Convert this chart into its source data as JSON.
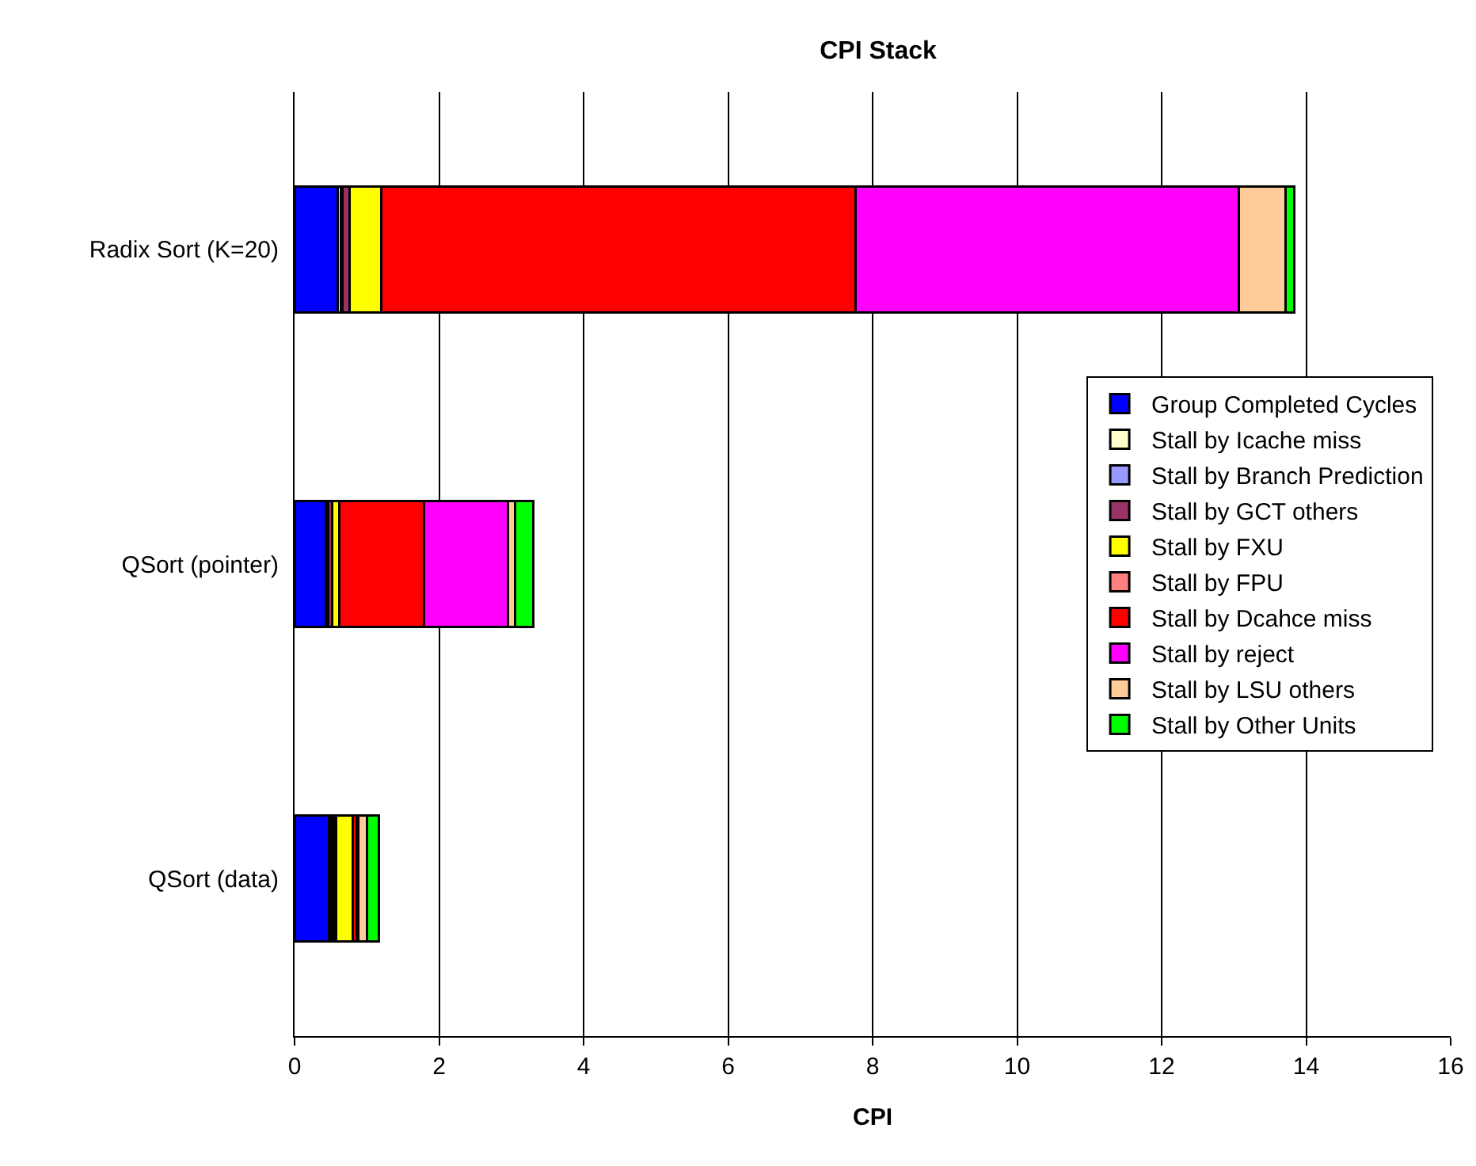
{
  "chart_data": {
    "type": "bar",
    "orientation": "horizontal",
    "stacked": true,
    "title": "CPI Stack",
    "xlabel": "CPI",
    "categories": [
      "Radix Sort (K=20)",
      "QSort (pointer)",
      "QSort (data)"
    ],
    "xlim": [
      0,
      16
    ],
    "xticks": [
      0,
      2,
      4,
      6,
      8,
      10,
      12,
      14,
      16
    ],
    "grid": "x",
    "legend": "right",
    "series": [
      {
        "name": "Group Completed Cycles",
        "color": "#0000ff",
        "values": [
          0.6,
          0.43,
          0.48
        ]
      },
      {
        "name": "Stall by Icache miss",
        "color": "#ffffcc",
        "values": [
          0.04,
          0.02,
          0.03
        ]
      },
      {
        "name": "Stall by Branch Prediction",
        "color": "#9999ff",
        "values": [
          0.02,
          0.02,
          0.03
        ]
      },
      {
        "name": "Stall by GCT others",
        "color": "#993366",
        "values": [
          0.1,
          0.05,
          0.03
        ]
      },
      {
        "name": "Stall by FXU",
        "color": "#ffff00",
        "values": [
          0.44,
          0.1,
          0.24
        ]
      },
      {
        "name": "Stall by FPU",
        "color": "#ff8080",
        "values": [
          0,
          0,
          0
        ]
      },
      {
        "name": "Stall by Dcahce miss",
        "color": "#ff0000",
        "values": [
          6.56,
          1.17,
          0.05
        ]
      },
      {
        "name": "Stall by reject",
        "color": "#ff00ff",
        "values": [
          5.31,
          1.16,
          0.02
        ]
      },
      {
        "name": "Stall by LSU others",
        "color": "#ffcc99",
        "values": [
          0.65,
          0.1,
          0.12
        ]
      },
      {
        "name": "Stall by Other Units",
        "color": "#00ff00",
        "values": [
          0.12,
          0.25,
          0.17
        ]
      }
    ]
  }
}
